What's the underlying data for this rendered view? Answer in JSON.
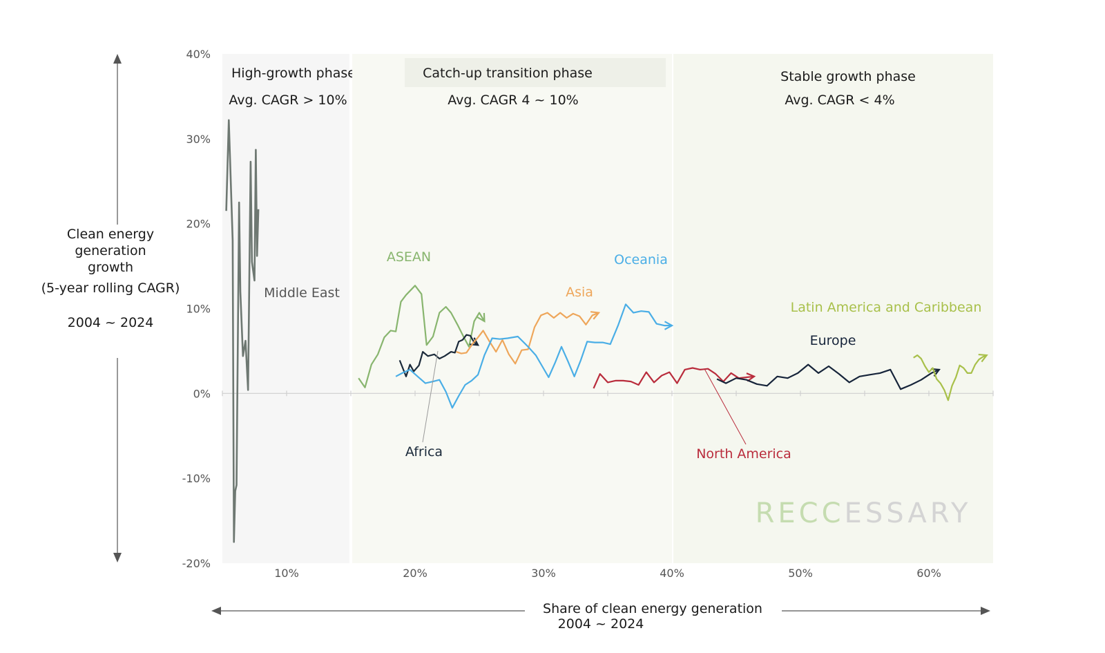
{
  "chart_data": {
    "type": "line",
    "ylabel": [
      "Clean energy",
      "generation",
      "growth",
      "(5-year rolling CAGR)"
    ],
    "ylabel_period": "2004 ~ 2024",
    "xlabel": "Share of clean energy generation",
    "xlabel_period": "2004 ~ 2024",
    "xlim": [
      5,
      65
    ],
    "ylim": [
      -20,
      40
    ],
    "x_ticks": [
      10,
      20,
      30,
      40,
      50,
      60
    ],
    "x_tick_labels": [
      "10%",
      "20%",
      "30%",
      "40%",
      "50%",
      "60%"
    ],
    "y_ticks": [
      40,
      30,
      20,
      10,
      0,
      -10,
      -20
    ],
    "y_tick_labels": [
      "40%",
      "30%",
      "20%",
      "10%",
      "0%",
      "-10%",
      "-20%"
    ],
    "watermark": "RECCESSARY",
    "watermark_colors": [
      "#c5dcb0",
      "#d4d4d4"
    ],
    "phases": [
      {
        "title": "High-growth phase",
        "subtitle": "Avg. CAGR > 10%",
        "x_range": [
          5,
          15
        ],
        "color": "#f6f6f6"
      },
      {
        "title": "Catch-up transition phase",
        "subtitle": "Avg. CAGR 4 ~ 10%",
        "x_range": [
          15,
          40
        ],
        "color": "#f8f9f3"
      },
      {
        "title": "Stable growth phase",
        "subtitle": "Avg. CAGR < 4%",
        "x_range": [
          40,
          65
        ],
        "color": "#f5f7ef"
      }
    ],
    "series": [
      {
        "name": "Middle East",
        "color": "#6e7872",
        "x": [
          5.3,
          5.5,
          5.8,
          5.9,
          6.0,
          6.1,
          6.3,
          6.4,
          6.6,
          6.8,
          7.0,
          7.2,
          7.3,
          7.5,
          7.6,
          7.7,
          7.8
        ],
        "y": [
          21.5,
          32.2,
          18,
          -17.5,
          -11.5,
          -10.8,
          22.5,
          12,
          4.4,
          6.2,
          0.4,
          27.3,
          15.5,
          13.3,
          28.7,
          16.2,
          21.7
        ]
      },
      {
        "name": "ASEAN",
        "color": "#88b56e",
        "x": [
          15.6,
          16.1,
          16.6,
          17.1,
          17.6,
          18.1,
          18.5,
          18.9,
          19.3,
          20.0,
          20.5,
          20.9,
          21.4,
          21.9,
          22.4,
          22.8,
          23.3,
          23.8,
          24.2,
          24.6,
          25.0,
          25.4
        ],
        "y": [
          1.8,
          0.7,
          3.4,
          4.6,
          6.6,
          7.4,
          7.3,
          10.8,
          11.6,
          12.7,
          11.7,
          5.7,
          6.7,
          9.5,
          10.2,
          9.5,
          8.1,
          6.6,
          5.5,
          8.5,
          9.5,
          8.5
        ]
      },
      {
        "name": "Africa",
        "color": "#1b2a3a",
        "x": [
          18.8,
          19.3,
          19.6,
          19.9,
          20.3,
          20.6,
          21.0,
          21.5,
          21.9,
          22.3,
          22.8,
          23.1,
          23.4,
          23.7,
          24.0,
          24.3,
          24.6,
          24.9
        ],
        "y": [
          3.9,
          2.0,
          3.4,
          2.6,
          3.3,
          4.9,
          4.4,
          4.6,
          4.1,
          4.4,
          4.9,
          4.8,
          6.1,
          6.3,
          6.9,
          6.8,
          6.0,
          5.7
        ]
      },
      {
        "name": "Asia",
        "color": "#eea65a",
        "x": [
          23.2,
          23.6,
          24.0,
          24.5,
          24.9,
          25.3,
          25.8,
          26.3,
          26.8,
          27.3,
          27.8,
          28.3,
          28.8,
          29.3,
          29.8,
          30.3,
          30.8,
          31.3,
          31.8,
          32.3,
          32.8,
          33.3,
          33.8,
          34.3
        ],
        "y": [
          4.9,
          4.7,
          4.8,
          5.9,
          6.6,
          7.4,
          6.1,
          4.9,
          6.3,
          4.6,
          3.5,
          5.1,
          5.2,
          7.8,
          9.2,
          9.5,
          8.9,
          9.5,
          8.9,
          9.4,
          9.1,
          8.1,
          9.2,
          9.5
        ]
      },
      {
        "name": "Oceania",
        "color": "#4aaee6",
        "x": [
          18.5,
          19.0,
          19.6,
          20.2,
          20.8,
          21.4,
          21.9,
          22.4,
          22.9,
          23.4,
          23.9,
          24.4,
          24.9,
          25.4,
          26.0,
          26.6,
          27.2,
          28.0,
          28.8,
          29.4,
          29.9,
          30.4,
          30.9,
          31.4,
          31.9,
          32.4,
          32.9,
          33.4,
          34.0,
          34.6,
          35.2,
          35.8,
          36.4,
          37.0,
          37.6,
          38.2,
          38.8,
          39.4,
          40.0
        ],
        "y": [
          2.0,
          2.4,
          2.8,
          2.0,
          1.2,
          1.4,
          1.6,
          0.2,
          -1.7,
          -0.3,
          1.0,
          1.5,
          2.2,
          4.5,
          6.5,
          6.4,
          6.5,
          6.7,
          5.5,
          4.5,
          3.2,
          1.9,
          3.6,
          5.5,
          3.8,
          2.0,
          3.9,
          6.1,
          6.0,
          6.0,
          5.8,
          8.0,
          10.5,
          9.5,
          9.7,
          9.6,
          8.2,
          8.0,
          8.0
        ]
      },
      {
        "name": "North America",
        "color": "#b92c3c",
        "x": [
          33.9,
          34.4,
          35.0,
          35.6,
          36.2,
          36.8,
          37.4,
          38.0,
          38.6,
          39.2,
          39.8,
          40.4,
          41.0,
          41.6,
          42.2,
          42.8,
          43.4,
          44.0,
          44.6,
          45.2,
          45.8,
          46.4
        ],
        "y": [
          0.6,
          2.3,
          1.3,
          1.5,
          1.5,
          1.4,
          1.0,
          2.5,
          1.3,
          2.1,
          2.5,
          1.2,
          2.8,
          3.0,
          2.8,
          2.9,
          2.3,
          1.4,
          2.4,
          1.8,
          1.9,
          2.0
        ]
      },
      {
        "name": "Europe",
        "color": "#16243a",
        "x": [
          43.5,
          44.2,
          45.0,
          45.8,
          46.6,
          47.4,
          48.2,
          49.0,
          49.8,
          50.6,
          51.4,
          52.2,
          53.0,
          53.8,
          54.6,
          55.4,
          56.2,
          57.0,
          57.8,
          58.6,
          59.4,
          60.2,
          60.8
        ],
        "y": [
          1.7,
          1.2,
          1.8,
          1.6,
          1.1,
          0.9,
          2.0,
          1.8,
          2.4,
          3.4,
          2.4,
          3.2,
          2.3,
          1.3,
          2.0,
          2.2,
          2.4,
          2.8,
          0.5,
          1.0,
          1.6,
          2.4,
          2.8
        ]
      },
      {
        "name": "Latin America and Caribbean",
        "color": "#a8c04a",
        "x": [
          58.8,
          59.1,
          59.4,
          59.7,
          60.0,
          60.3,
          60.6,
          60.9,
          61.2,
          61.5,
          61.8,
          62.1,
          62.4,
          62.7,
          63.0,
          63.3,
          63.6,
          63.9,
          64.2,
          64.5
        ],
        "y": [
          4.2,
          4.5,
          4.1,
          3.2,
          2.5,
          3.0,
          1.7,
          1.2,
          0.4,
          -0.8,
          0.9,
          1.9,
          3.3,
          3.0,
          2.4,
          2.4,
          3.4,
          4.0,
          4.3,
          4.5
        ]
      }
    ]
  }
}
